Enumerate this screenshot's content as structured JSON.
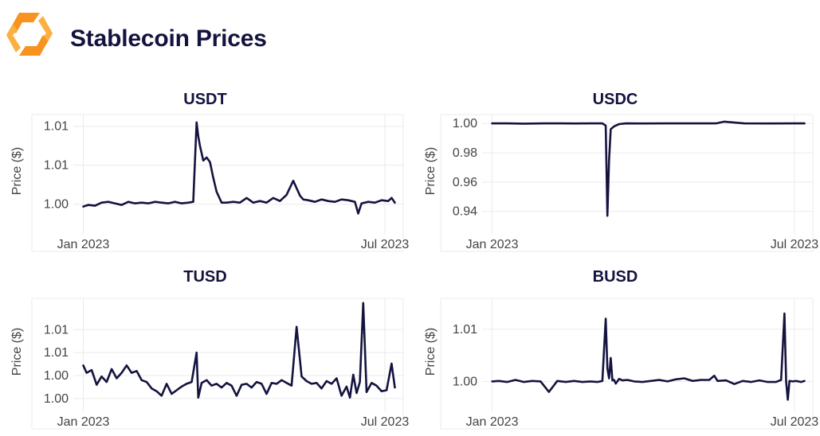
{
  "page": {
    "title": "Stablecoin Prices",
    "logo": "orange-hexagon-logo-icon"
  },
  "colors": {
    "line": "#14133f",
    "title": "#14133f",
    "grid": "#ebebeb",
    "axis_text": "#444444",
    "logo_orange": "#f7931e",
    "logo_light": "#fbb040"
  },
  "chart_data": [
    {
      "type": "line",
      "title": "USDT",
      "ylabel": "Price ($)",
      "x_ticks": [
        "Jan 2023",
        "Jul 2023"
      ],
      "y_ticks": [
        "1.00",
        "1.01",
        "1.01"
      ],
      "y_tick_values": [
        1.0,
        1.005,
        1.01
      ],
      "ylim": [
        0.997,
        1.0115
      ],
      "xlim": [
        "2022-12-26",
        "2023-07-12"
      ],
      "x": [
        "2023-01-01",
        "2023-01-04",
        "2023-01-08",
        "2023-01-12",
        "2023-01-16",
        "2023-01-20",
        "2023-01-24",
        "2023-01-28",
        "2023-02-01",
        "2023-02-05",
        "2023-02-09",
        "2023-02-13",
        "2023-02-17",
        "2023-02-21",
        "2023-02-25",
        "2023-03-01",
        "2023-03-05",
        "2023-03-08",
        "2023-03-10",
        "2023-03-11",
        "2023-03-12",
        "2023-03-14",
        "2023-03-16",
        "2023-03-18",
        "2023-03-20",
        "2023-03-22",
        "2023-03-25",
        "2023-03-28",
        "2023-04-01",
        "2023-04-05",
        "2023-04-09",
        "2023-04-13",
        "2023-04-17",
        "2023-04-21",
        "2023-04-25",
        "2023-04-29",
        "2023-05-03",
        "2023-05-07",
        "2023-05-11",
        "2023-05-13",
        "2023-05-16",
        "2023-05-20",
        "2023-05-24",
        "2023-05-28",
        "2023-06-01",
        "2023-06-05",
        "2023-06-09",
        "2023-06-13",
        "2023-06-15",
        "2023-06-17",
        "2023-06-21",
        "2023-06-25",
        "2023-06-29",
        "2023-07-03",
        "2023-07-05",
        "2023-07-07"
      ],
      "series": [
        {
          "values": [
            0.9997,
            0.9999,
            0.9998,
            1.0002,
            1.0003,
            1.0001,
            0.9999,
            1.0003,
            1.0001,
            1.0002,
            1.0001,
            1.0003,
            1.0002,
            1.0001,
            1.0003,
            1.0001,
            1.0002,
            1.0003,
            1.0105,
            1.0087,
            1.0075,
            1.0056,
            1.006,
            1.0054,
            1.0034,
            1.0016,
            1.0002,
            1.0002,
            1.0003,
            1.0002,
            1.0008,
            1.0002,
            1.0004,
            1.0002,
            1.0008,
            1.0004,
            1.0012,
            1.003,
            1.0011,
            1.0006,
            1.0005,
            1.0003,
            1.0006,
            1.0004,
            1.0003,
            1.0006,
            1.0005,
            1.0003,
            0.9988,
            1.0001,
            1.0003,
            1.0002,
            1.0005,
            1.0004,
            1.0008,
            1.0002
          ]
        }
      ]
    },
    {
      "type": "line",
      "title": "USDC",
      "ylabel": "Price ($)",
      "x_ticks": [
        "Jan 2023",
        "Jul 2023"
      ],
      "y_ticks": [
        "1.00",
        "0.98",
        "0.96",
        "0.94"
      ],
      "y_tick_values": [
        1.0,
        0.98,
        0.96,
        0.94
      ],
      "ylim": [
        0.929,
        1.006
      ],
      "xlim": [
        "2022-12-26",
        "2023-07-12"
      ],
      "x": [
        "2023-01-01",
        "2023-01-10",
        "2023-01-20",
        "2023-02-01",
        "2023-02-10",
        "2023-02-20",
        "2023-03-01",
        "2023-03-08",
        "2023-03-10",
        "2023-03-11",
        "2023-03-12",
        "2023-03-13",
        "2023-03-15",
        "2023-03-18",
        "2023-03-22",
        "2023-04-01",
        "2023-04-15",
        "2023-05-01",
        "2023-05-15",
        "2023-05-20",
        "2023-06-01",
        "2023-06-15",
        "2023-07-01",
        "2023-07-07"
      ],
      "series": [
        {
          "values": [
            1.0,
            1.0,
            0.9998,
            1.0,
            1.0,
            0.9999,
            1.0,
            1.0,
            0.9985,
            0.937,
            0.975,
            0.996,
            0.998,
            0.9995,
            1.0,
            0.9999,
            1.0,
            1.0,
            1.0,
            1.0012,
            1.0,
            0.9999,
            1.0,
            1.0
          ]
        }
      ]
    },
    {
      "type": "line",
      "title": "TUSD",
      "ylabel": "Price ($)",
      "x_ticks": [
        "Jan 2023",
        "Jul 2023"
      ],
      "y_ticks": [
        "1.01",
        "1.01",
        "1.00",
        "1.00"
      ],
      "y_tick_values": [
        1.0075,
        1.005,
        1.0025,
        1.0
      ],
      "ylim": [
        0.9993,
        1.0109
      ],
      "xlim": [
        "2022-12-26",
        "2023-07-12"
      ],
      "x": [
        "2023-01-01",
        "2023-01-03",
        "2023-01-06",
        "2023-01-09",
        "2023-01-12",
        "2023-01-15",
        "2023-01-18",
        "2023-01-21",
        "2023-01-24",
        "2023-01-27",
        "2023-01-30",
        "2023-02-02",
        "2023-02-05",
        "2023-02-08",
        "2023-02-11",
        "2023-02-14",
        "2023-02-17",
        "2023-02-20",
        "2023-02-23",
        "2023-02-26",
        "2023-03-01",
        "2023-03-04",
        "2023-03-07",
        "2023-03-10",
        "2023-03-11",
        "2023-03-13",
        "2023-03-16",
        "2023-03-19",
        "2023-03-22",
        "2023-03-25",
        "2023-03-28",
        "2023-03-31",
        "2023-04-03",
        "2023-04-06",
        "2023-04-09",
        "2023-04-12",
        "2023-04-15",
        "2023-04-18",
        "2023-04-21",
        "2023-04-24",
        "2023-04-27",
        "2023-04-30",
        "2023-05-03",
        "2023-05-06",
        "2023-05-09",
        "2023-05-12",
        "2023-05-15",
        "2023-05-18",
        "2023-05-21",
        "2023-05-24",
        "2023-05-27",
        "2023-05-30",
        "2023-06-02",
        "2023-06-05",
        "2023-06-08",
        "2023-06-10",
        "2023-06-12",
        "2023-06-14",
        "2023-06-16",
        "2023-06-18",
        "2023-06-20",
        "2023-06-23",
        "2023-06-26",
        "2023-06-29",
        "2023-07-02",
        "2023-07-05",
        "2023-07-07"
      ],
      "series": [
        {
          "values": [
            1.0036,
            1.0028,
            1.0031,
            1.0015,
            1.0024,
            1.0018,
            1.0032,
            1.0022,
            1.0028,
            1.0036,
            1.0028,
            1.003,
            1.002,
            1.0018,
            1.0011,
            1.0008,
            1.0003,
            1.0016,
            1.0005,
            1.0009,
            1.0013,
            1.0016,
            1.0018,
            1.005,
            1.0001,
            1.0017,
            1.002,
            1.0014,
            1.0016,
            1.0012,
            1.0017,
            1.0014,
            1.0003,
            1.0015,
            1.0016,
            1.0012,
            1.0018,
            1.0016,
            1.0005,
            1.0017,
            1.0016,
            1.002,
            1.0017,
            1.0014,
            1.0078,
            1.0024,
            1.0019,
            1.0016,
            1.0017,
            1.0011,
            1.0019,
            1.0016,
            1.0022,
            1.0003,
            1.0013,
            1.0001,
            1.0026,
            1.0006,
            1.0018,
            1.0104,
            1.0007,
            1.0017,
            1.0014,
            1.0008,
            1.0009,
            1.0038,
            1.0012
          ]
        }
      ]
    },
    {
      "type": "line",
      "title": "BUSD",
      "ylabel": "Price ($)",
      "x_ticks": [
        "Jan 2023",
        "Jul 2023"
      ],
      "y_ticks": [
        "1.01",
        "1.00"
      ],
      "y_tick_values": [
        1.01,
        1.0
      ],
      "ylim": [
        0.9955,
        1.0159
      ],
      "xlim": [
        "2022-12-26",
        "2023-07-12"
      ],
      "x": [
        "2023-01-01",
        "2023-01-05",
        "2023-01-10",
        "2023-01-15",
        "2023-01-20",
        "2023-01-25",
        "2023-01-30",
        "2023-02-04",
        "2023-02-09",
        "2023-02-14",
        "2023-02-19",
        "2023-02-24",
        "2023-03-01",
        "2023-03-05",
        "2023-03-08",
        "2023-03-10",
        "2023-03-11",
        "2023-03-12",
        "2023-03-13",
        "2023-03-14",
        "2023-03-15",
        "2023-03-16",
        "2023-03-18",
        "2023-03-20",
        "2023-03-23",
        "2023-03-27",
        "2023-04-01",
        "2023-04-06",
        "2023-04-11",
        "2023-04-16",
        "2023-04-21",
        "2023-04-26",
        "2023-05-01",
        "2023-05-06",
        "2023-05-11",
        "2023-05-14",
        "2023-05-16",
        "2023-05-21",
        "2023-05-26",
        "2023-05-31",
        "2023-06-05",
        "2023-06-10",
        "2023-06-15",
        "2023-06-20",
        "2023-06-23",
        "2023-06-25",
        "2023-06-26",
        "2023-06-27",
        "2023-06-28",
        "2023-06-30",
        "2023-07-02",
        "2023-07-05",
        "2023-07-07"
      ],
      "series": [
        {
          "values": [
            1.0,
            1.0001,
            0.9999,
            1.0003,
            0.9999,
            1.0001,
            1.0,
            0.998,
            1.0001,
            0.9999,
            1.0001,
            0.9999,
            1.0,
            0.9999,
            1.0001,
            1.012,
            1.0025,
            1.0006,
            1.0045,
            1.0002,
            1.0003,
            0.9996,
            1.0005,
            1.0002,
            1.0003,
            1.0,
            0.9999,
            1.0001,
            1.0003,
            1.0,
            1.0004,
            1.0006,
            1.0001,
            1.0003,
            1.0003,
            1.0011,
            1.0001,
            1.0002,
            0.9995,
            1.0001,
            0.9999,
            1.0002,
            0.9999,
            0.9999,
            1.0003,
            1.013,
            1.0,
            0.9965,
            1.0001,
            1.0,
            1.0001,
            0.9999,
            1.0001
          ]
        }
      ]
    }
  ]
}
